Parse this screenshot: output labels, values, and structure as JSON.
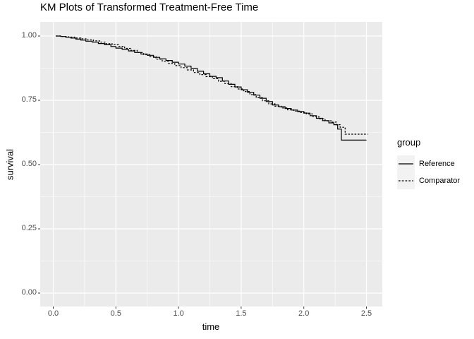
{
  "title": "KM Plots of Transformed Treatment-Free Time",
  "axes": {
    "x_label": "time",
    "y_label": "survival",
    "x_tick_labels": [
      "0.0",
      "0.5",
      "1.0",
      "1.5",
      "2.0",
      "2.5"
    ],
    "y_tick_labels": [
      "0.00",
      "0.25",
      "0.50",
      "0.75",
      "1.00"
    ]
  },
  "legend": {
    "title": "group",
    "items": [
      {
        "label": "Reference",
        "style": "solid"
      },
      {
        "label": "Comparator",
        "style": "dashed"
      }
    ]
  },
  "colors": {
    "panel_bg": "#EBEBEB",
    "grid": "#FFFFFF",
    "line": "#000000",
    "tick_mark": "#333333",
    "tick_text": "#4D4D4D",
    "legend_key_bg": "#F2F2F2"
  },
  "chart_data": {
    "type": "line",
    "subtype": "kaplan-meier-step",
    "title": "KM Plots of Transformed Treatment-Free Time",
    "xlabel": "time",
    "ylabel": "survival",
    "xlim": [
      0,
      2.52
    ],
    "ylim": [
      0,
      1.0
    ],
    "x_ticks": [
      0,
      0.5,
      1.0,
      1.5,
      2.0,
      2.5
    ],
    "y_ticks": [
      0,
      0.25,
      0.5,
      0.75,
      1.0
    ],
    "x_minor_ticks": [
      0.25,
      0.75,
      1.25,
      1.75,
      2.25
    ],
    "y_minor_ticks": [
      0.125,
      0.375,
      0.625,
      0.875
    ],
    "grid": true,
    "legend_title": "group",
    "legend_position": "right",
    "series": [
      {
        "name": "Reference",
        "line": "solid",
        "points": [
          [
            0.02,
            1.0
          ],
          [
            0.06,
            0.998
          ],
          [
            0.1,
            0.995
          ],
          [
            0.14,
            0.992
          ],
          [
            0.18,
            0.988
          ],
          [
            0.22,
            0.984
          ],
          [
            0.26,
            0.98
          ],
          [
            0.31,
            0.976
          ],
          [
            0.36,
            0.971
          ],
          [
            0.41,
            0.966
          ],
          [
            0.46,
            0.959
          ],
          [
            0.5,
            0.953
          ],
          [
            0.55,
            0.948
          ],
          [
            0.6,
            0.942
          ],
          [
            0.65,
            0.936
          ],
          [
            0.7,
            0.93
          ],
          [
            0.75,
            0.925
          ],
          [
            0.8,
            0.917
          ],
          [
            0.85,
            0.911
          ],
          [
            0.9,
            0.905
          ],
          [
            0.95,
            0.898
          ],
          [
            1.0,
            0.891
          ],
          [
            1.05,
            0.883
          ],
          [
            1.1,
            0.874
          ],
          [
            1.15,
            0.863
          ],
          [
            1.2,
            0.853
          ],
          [
            1.25,
            0.843
          ],
          [
            1.3,
            0.838
          ],
          [
            1.35,
            0.825
          ],
          [
            1.4,
            0.812
          ],
          [
            1.45,
            0.802
          ],
          [
            1.5,
            0.791
          ],
          [
            1.55,
            0.781
          ],
          [
            1.6,
            0.77
          ],
          [
            1.65,
            0.758
          ],
          [
            1.7,
            0.745
          ],
          [
            1.75,
            0.732
          ],
          [
            1.8,
            0.725
          ],
          [
            1.85,
            0.718
          ],
          [
            1.9,
            0.712
          ],
          [
            1.95,
            0.706
          ],
          [
            2.0,
            0.7
          ],
          [
            2.05,
            0.69
          ],
          [
            2.1,
            0.68
          ],
          [
            2.15,
            0.671
          ],
          [
            2.2,
            0.662
          ],
          [
            2.24,
            0.655
          ],
          [
            2.27,
            0.638
          ],
          [
            2.3,
            0.595
          ],
          [
            2.5,
            0.595
          ]
        ]
      },
      {
        "name": "Comparator",
        "line": "dashed",
        "points": [
          [
            0.02,
            1.0
          ],
          [
            0.07,
            0.998
          ],
          [
            0.12,
            0.996
          ],
          [
            0.17,
            0.992
          ],
          [
            0.22,
            0.989
          ],
          [
            0.27,
            0.985
          ],
          [
            0.32,
            0.981
          ],
          [
            0.37,
            0.976
          ],
          [
            0.42,
            0.97
          ],
          [
            0.47,
            0.966
          ],
          [
            0.52,
            0.96
          ],
          [
            0.57,
            0.952
          ],
          [
            0.62,
            0.944
          ],
          [
            0.67,
            0.936
          ],
          [
            0.72,
            0.928
          ],
          [
            0.77,
            0.92
          ],
          [
            0.82,
            0.91
          ],
          [
            0.87,
            0.902
          ],
          [
            0.92,
            0.893
          ],
          [
            0.97,
            0.885
          ],
          [
            1.02,
            0.877
          ],
          [
            1.07,
            0.868
          ],
          [
            1.12,
            0.858
          ],
          [
            1.17,
            0.85
          ],
          [
            1.22,
            0.842
          ],
          [
            1.27,
            0.834
          ],
          [
            1.32,
            0.824
          ],
          [
            1.37,
            0.815
          ],
          [
            1.42,
            0.803
          ],
          [
            1.47,
            0.794
          ],
          [
            1.52,
            0.784
          ],
          [
            1.57,
            0.772
          ],
          [
            1.62,
            0.76
          ],
          [
            1.67,
            0.748
          ],
          [
            1.72,
            0.736
          ],
          [
            1.77,
            0.727
          ],
          [
            1.82,
            0.72
          ],
          [
            1.87,
            0.713
          ],
          [
            1.92,
            0.708
          ],
          [
            1.97,
            0.703
          ],
          [
            2.02,
            0.697
          ],
          [
            2.07,
            0.688
          ],
          [
            2.12,
            0.678
          ],
          [
            2.17,
            0.67
          ],
          [
            2.22,
            0.665
          ],
          [
            2.26,
            0.655
          ],
          [
            2.29,
            0.645
          ],
          [
            2.33,
            0.618
          ],
          [
            2.51,
            0.618
          ]
        ]
      }
    ]
  }
}
